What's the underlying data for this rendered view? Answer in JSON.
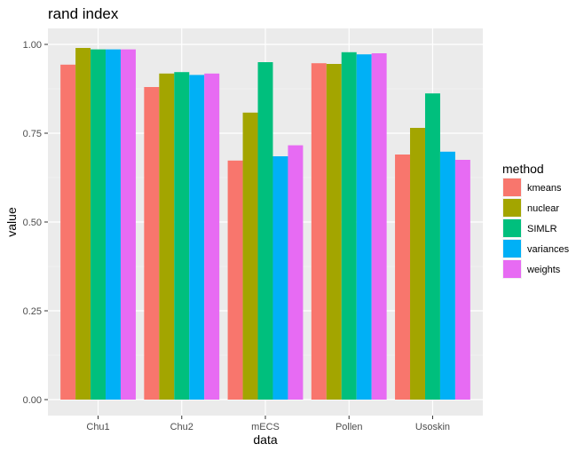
{
  "chart_data": {
    "type": "bar",
    "title": "rand index",
    "xlabel": "data",
    "ylabel": "value",
    "ylim": [
      0,
      1.045
    ],
    "yticks": [
      0.0,
      0.25,
      0.5,
      0.75,
      1.0
    ],
    "ytick_labels": [
      "0.00",
      "0.25",
      "0.50",
      "0.75",
      "1.00"
    ],
    "categories": [
      "Chu1",
      "Chu2",
      "mECS",
      "Pollen",
      "Usoskin"
    ],
    "legend_title": "method",
    "legend_position": "right",
    "grid": true,
    "series": [
      {
        "name": "kmeans",
        "color": "#F8766D",
        "values": [
          0.943,
          0.88,
          0.673,
          0.947,
          0.69
        ]
      },
      {
        "name": "nuclear",
        "color": "#A3A500",
        "values": [
          0.99,
          0.918,
          0.808,
          0.945,
          0.765
        ]
      },
      {
        "name": "SIMLR",
        "color": "#00BF7D",
        "values": [
          0.986,
          0.922,
          0.95,
          0.978,
          0.862
        ]
      },
      {
        "name": "variances",
        "color": "#00B0F6",
        "values": [
          0.986,
          0.914,
          0.685,
          0.972,
          0.698
        ]
      },
      {
        "name": "weights",
        "color": "#E76BF3",
        "values": [
          0.986,
          0.918,
          0.716,
          0.975,
          0.675
        ]
      }
    ]
  }
}
